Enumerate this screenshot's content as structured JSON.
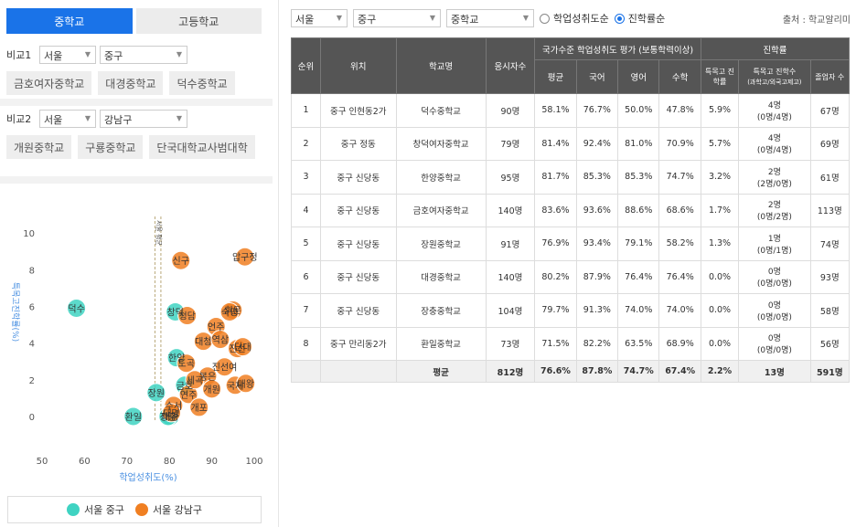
{
  "tabs": [
    {
      "label": "중학교",
      "active": true
    },
    {
      "label": "고등학교",
      "active": false
    }
  ],
  "compare1": {
    "label": "비교1",
    "city": "서울",
    "district": "중구",
    "schools": [
      "금호여자중학교",
      "대경중학교",
      "덕수중학교"
    ]
  },
  "compare2": {
    "label": "비교2",
    "city": "서울",
    "district": "강남구",
    "schools": [
      "개원중학교",
      "구룡중학교",
      "단국대학교사범대학"
    ]
  },
  "filters": {
    "city": "서울",
    "district": "중구",
    "level": "중학교",
    "sort_options": [
      {
        "label": "학업성취도순",
        "selected": false
      },
      {
        "label": "진학률순",
        "selected": true
      }
    ]
  },
  "source": "출처 : 학교알리미",
  "table": {
    "headers": {
      "rank": "순위",
      "location": "위치",
      "school": "학교명",
      "examinees": "응시자수",
      "group_national": "국가수준 학업성취도 평가 (보통학력이상)",
      "avg": "평균",
      "korean": "국어",
      "english": "영어",
      "math": "수학",
      "group_adv": "진학률",
      "special_rate": "특목고 진학률",
      "special_count": "특목고 진학수",
      "special_count_sub": "(과학고/외국고제고)",
      "graduates": "졸업자 수"
    },
    "rows": [
      {
        "rank": "1",
        "location": "중구 인현동2가",
        "school": "덕수중학교",
        "examinees": "90명",
        "avg": "58.1%",
        "korean": "76.7%",
        "english": "50.0%",
        "math": "47.8%",
        "special_rate": "5.9%",
        "special_count": "4명",
        "special_detail": "(0명/4명)",
        "graduates": "67명"
      },
      {
        "rank": "2",
        "location": "중구 정동",
        "school": "창덕여자중학교",
        "examinees": "79명",
        "avg": "81.4%",
        "korean": "92.4%",
        "english": "81.0%",
        "math": "70.9%",
        "special_rate": "5.7%",
        "special_count": "4명",
        "special_detail": "(0명/4명)",
        "graduates": "69명"
      },
      {
        "rank": "3",
        "location": "중구 신당동",
        "school": "한양중학교",
        "examinees": "95명",
        "avg": "81.7%",
        "korean": "85.3%",
        "english": "85.3%",
        "math": "74.7%",
        "special_rate": "3.2%",
        "special_count": "2명",
        "special_detail": "(2명/0명)",
        "graduates": "61명"
      },
      {
        "rank": "4",
        "location": "중구 신당동",
        "school": "금호여자중학교",
        "examinees": "140명",
        "avg": "83.6%",
        "korean": "93.6%",
        "english": "88.6%",
        "math": "68.6%",
        "special_rate": "1.7%",
        "special_count": "2명",
        "special_detail": "(0명/2명)",
        "graduates": "113명"
      },
      {
        "rank": "5",
        "location": "중구 신당동",
        "school": "장원중학교",
        "examinees": "91명",
        "avg": "76.9%",
        "korean": "93.4%",
        "english": "79.1%",
        "math": "58.2%",
        "special_rate": "1.3%",
        "special_count": "1명",
        "special_detail": "(0명/1명)",
        "graduates": "74명"
      },
      {
        "rank": "6",
        "location": "중구 신당동",
        "school": "대경중학교",
        "examinees": "140명",
        "avg": "80.2%",
        "korean": "87.9%",
        "english": "76.4%",
        "math": "76.4%",
        "special_rate": "0.0%",
        "special_count": "0명",
        "special_detail": "(0명/0명)",
        "graduates": "93명"
      },
      {
        "rank": "7",
        "location": "중구 신당동",
        "school": "장충중학교",
        "examinees": "104명",
        "avg": "79.7%",
        "korean": "91.3%",
        "english": "74.0%",
        "math": "74.0%",
        "special_rate": "0.0%",
        "special_count": "0명",
        "special_detail": "(0명/0명)",
        "graduates": "58명"
      },
      {
        "rank": "8",
        "location": "중구 만리동2가",
        "school": "환일중학교",
        "examinees": "73명",
        "avg": "71.5%",
        "korean": "82.2%",
        "english": "63.5%",
        "math": "68.9%",
        "special_rate": "0.0%",
        "special_count": "0명",
        "special_detail": "(0명/0명)",
        "graduates": "56명"
      }
    ],
    "average": {
      "label": "평균",
      "examinees": "812명",
      "avg": "76.6%",
      "korean": "87.8%",
      "english": "74.7%",
      "math": "67.4%",
      "special_rate": "2.2%",
      "special_count": "13명",
      "graduates": "591명"
    }
  },
  "chart_data": {
    "type": "scatter",
    "xlabel": "학업성취도(%)",
    "ylabel": "특목고진학률(%)",
    "xlim": [
      50,
      100
    ],
    "ylim": [
      -0.6,
      11
    ],
    "xticks": [
      50,
      60,
      70,
      80,
      90,
      100
    ],
    "yticks": [
      0,
      2,
      4,
      6,
      8,
      10
    ],
    "reference_lines_x": [
      76.6,
      78.0
    ],
    "reference_line_label": "서울 평균",
    "series": [
      {
        "name": "서울 중구",
        "color": "#3fd3c2",
        "points": [
          {
            "x": 58.1,
            "y": 5.9,
            "label": "덕수"
          },
          {
            "x": 81.4,
            "y": 5.7,
            "label": "창덕"
          },
          {
            "x": 81.7,
            "y": 3.2,
            "label": "한양"
          },
          {
            "x": 83.6,
            "y": 1.7,
            "label": "금호"
          },
          {
            "x": 76.9,
            "y": 1.3,
            "label": "장원"
          },
          {
            "x": 80.2,
            "y": 0.0,
            "label": "대경"
          },
          {
            "x": 79.7,
            "y": 0.0,
            "label": "장충"
          },
          {
            "x": 71.5,
            "y": 0.0,
            "label": "환일"
          }
        ]
      },
      {
        "name": "서울 강남구",
        "color": "#f07f22",
        "points": [
          {
            "x": 82.7,
            "y": 8.5,
            "label": "신구"
          },
          {
            "x": 97.8,
            "y": 8.7,
            "label": "압구정"
          },
          {
            "x": 84.2,
            "y": 5.5,
            "label": "청담"
          },
          {
            "x": 95.0,
            "y": 5.8,
            "label": "휘문"
          },
          {
            "x": 94.2,
            "y": 5.7,
            "label": "숙명"
          },
          {
            "x": 88.0,
            "y": 4.1,
            "label": "대청"
          },
          {
            "x": 91.0,
            "y": 4.9,
            "label": "언주"
          },
          {
            "x": 92.0,
            "y": 4.2,
            "label": "역삼"
          },
          {
            "x": 96.0,
            "y": 3.7,
            "label": "진선"
          },
          {
            "x": 97.3,
            "y": 3.8,
            "label": "단대"
          },
          {
            "x": 84.0,
            "y": 2.9,
            "label": "도곡"
          },
          {
            "x": 93.0,
            "y": 2.7,
            "label": "진선여"
          },
          {
            "x": 89.0,
            "y": 2.2,
            "label": "봉은"
          },
          {
            "x": 95.5,
            "y": 1.7,
            "label": "국제"
          },
          {
            "x": 98.0,
            "y": 1.8,
            "label": "대왕"
          },
          {
            "x": 84.5,
            "y": 1.2,
            "label": "연주"
          },
          {
            "x": 90.0,
            "y": 1.5,
            "label": "개원"
          },
          {
            "x": 81.0,
            "y": 0.6,
            "label": "수서"
          },
          {
            "x": 87.0,
            "y": 0.5,
            "label": "개포"
          },
          {
            "x": 86.0,
            "y": 2.0,
            "label": "세곡"
          },
          {
            "x": 80.5,
            "y": 0.2,
            "label": "대명"
          }
        ]
      }
    ]
  },
  "legend": [
    {
      "label": "서울 중구",
      "color": "#3fd3c2"
    },
    {
      "label": "서울 강남구",
      "color": "#f07f22"
    }
  ]
}
